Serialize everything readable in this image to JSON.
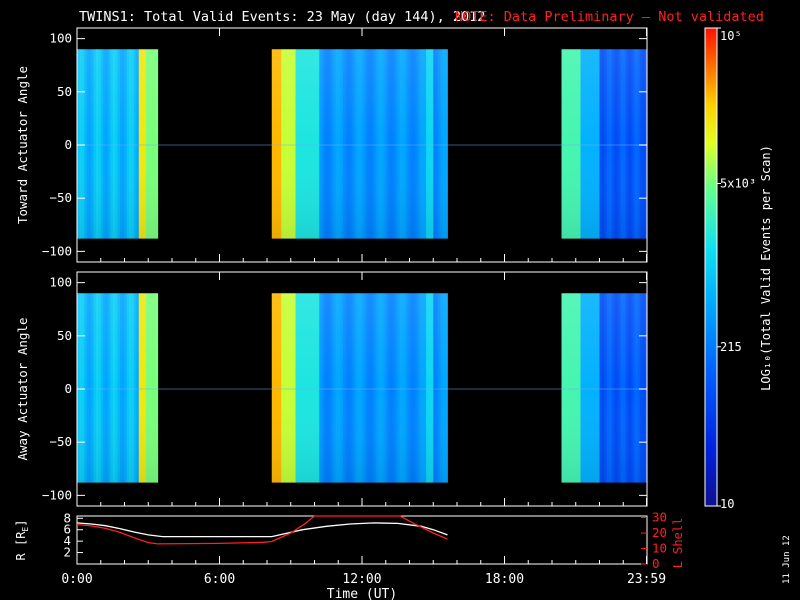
{
  "title": "TWINS1: Total Valid Events: 23 May (day 144), 2012",
  "note": "NOTE: Data Preliminary – Not validated",
  "date_stamp": "11 Jun 12",
  "colors": {
    "note": "#ff2020",
    "lshell": "#ff2020",
    "r_line": "#ffffff",
    "gap": "#000000"
  },
  "chart_data": [
    {
      "type": "heatmap",
      "ylabel": "Toward Actuator Angle",
      "y_ticks": [
        "100",
        "50",
        "0",
        "−50",
        "−100"
      ],
      "y_tick_values": [
        100,
        50,
        0,
        -50,
        -100
      ],
      "ylim": [
        -110,
        110
      ],
      "xlim": [
        0,
        24
      ],
      "data_angle_range": [
        -88,
        90
      ],
      "data_intervals_hours": [
        [
          0.0,
          3.4
        ],
        [
          8.2,
          15.6
        ],
        [
          20.4,
          23.98
        ]
      ]
    },
    {
      "type": "heatmap",
      "ylabel": "Away Actuator Angle",
      "y_ticks": [
        "100",
        "50",
        "0",
        "−50",
        "−100"
      ],
      "y_tick_values": [
        100,
        50,
        0,
        -50,
        -100
      ],
      "ylim": [
        -110,
        110
      ],
      "xlim": [
        0,
        24
      ],
      "data_angle_range": [
        -88,
        90
      ],
      "data_intervals_hours": [
        [
          0.0,
          3.4
        ],
        [
          8.2,
          15.6
        ],
        [
          20.4,
          23.98
        ]
      ]
    },
    {
      "type": "line",
      "xlabel": "Time (UT)",
      "x_ticks": [
        "0:00",
        "6:00",
        "12:00",
        "18:00",
        "23:59"
      ],
      "x_tick_values": [
        0,
        6,
        12,
        18,
        23.98
      ],
      "xlim": [
        0,
        24
      ],
      "ylabel_left": "R [R",
      "ylabel_left_sub": "E",
      "ylabel_left_close": "]",
      "y_ticks_left": [
        "8",
        "6",
        "4",
        "2"
      ],
      "y_tick_values_left": [
        8,
        6,
        4,
        2
      ],
      "ylim_left": [
        0,
        8.4
      ],
      "ylabel_right": "L Shell",
      "y_ticks_right": [
        "30",
        "20",
        "10",
        "0"
      ],
      "y_tick_values_right": [
        30,
        20,
        10,
        0
      ],
      "ylim_right": [
        0,
        31
      ],
      "series": [
        {
          "axis": "left",
          "x": [
            0,
            0.6,
            1.2,
            1.8,
            2.4,
            3.0,
            3.6,
            4.4,
            8.2,
            9.5,
            10.5,
            11.5,
            12.5,
            13.5,
            14.5,
            15.0,
            15.6
          ],
          "y": [
            7.2,
            7.0,
            6.7,
            6.2,
            5.6,
            5.1,
            4.8,
            4.8,
            4.8,
            6.0,
            6.6,
            7.0,
            7.2,
            7.1,
            6.6,
            6.0,
            5.1
          ]
        },
        {
          "axis": "right",
          "x": [
            0,
            0.6,
            1.2,
            1.8,
            2.4,
            3.0,
            3.4,
            6.0,
            7.8,
            8.2,
            9.0,
            9.6,
            10.0,
            13.6,
            14.2,
            15.0,
            15.6
          ],
          "y": [
            25.5,
            24.6,
            23.0,
            20.5,
            17.0,
            13.8,
            13.0,
            13.3,
            14.0,
            14.5,
            20.0,
            26.0,
            31.0,
            31.0,
            26.0,
            20.0,
            16.0
          ]
        }
      ]
    }
  ],
  "colorbar": {
    "scale": "log",
    "range": [
      10,
      100000
    ],
    "tick_labels": [
      "10",
      "215",
      "5x10³",
      "10⁵"
    ],
    "tick_values": [
      10,
      215,
      5000,
      100000
    ],
    "label": "LOG₁₀(Total Valid Events per Scan)"
  }
}
